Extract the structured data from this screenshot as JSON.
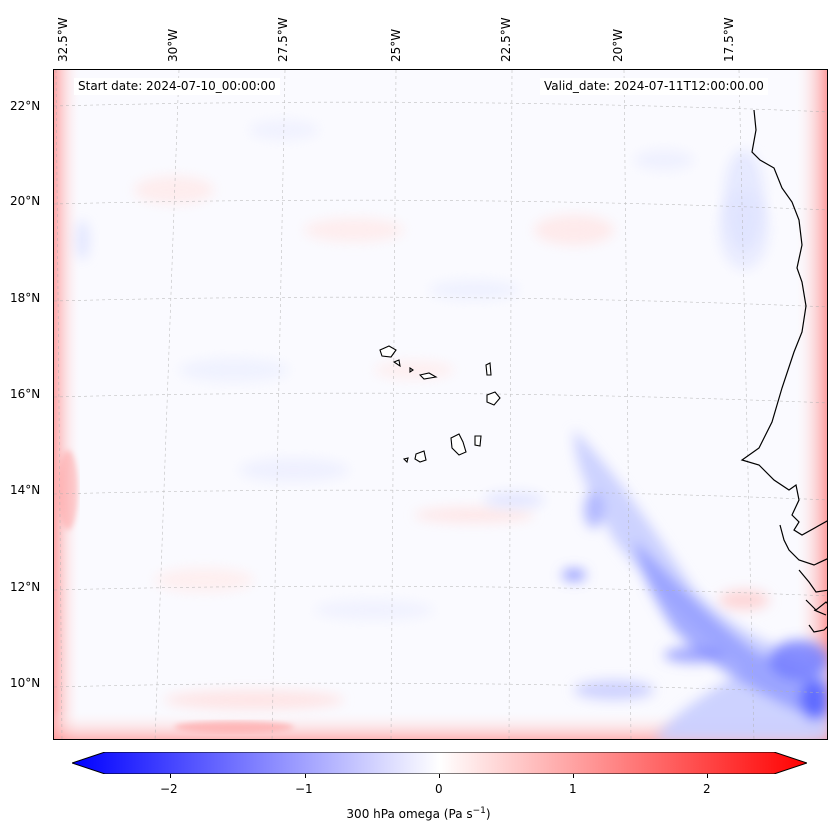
{
  "map": {
    "start_date": "Start date: 2024-07-10_00:00:00",
    "valid_date": "Valid_date: 2024-07-11T12:00:00.00",
    "lon_labels": [
      "32.5°W",
      "30°W",
      "27.5°W",
      "25°W",
      "22.5°W",
      "20°W",
      "17.5°W"
    ],
    "lat_labels": [
      "22°N",
      "20°N",
      "18°N",
      "16°N",
      "14°N",
      "12°N",
      "10°N"
    ],
    "colorbar": {
      "label": "300 hPa omega (Pa s",
      "label_sup": "−1",
      "label_end": ")",
      "ticks": [
        "−2",
        "−1",
        "0",
        "1",
        "2"
      ],
      "range": [
        -2.6,
        2.6
      ],
      "colormap": "bwr"
    },
    "colors": {
      "negative": "#0000ff",
      "neutral": "#ffffff",
      "positive": "#ff0000",
      "coast": "#000000"
    }
  }
}
